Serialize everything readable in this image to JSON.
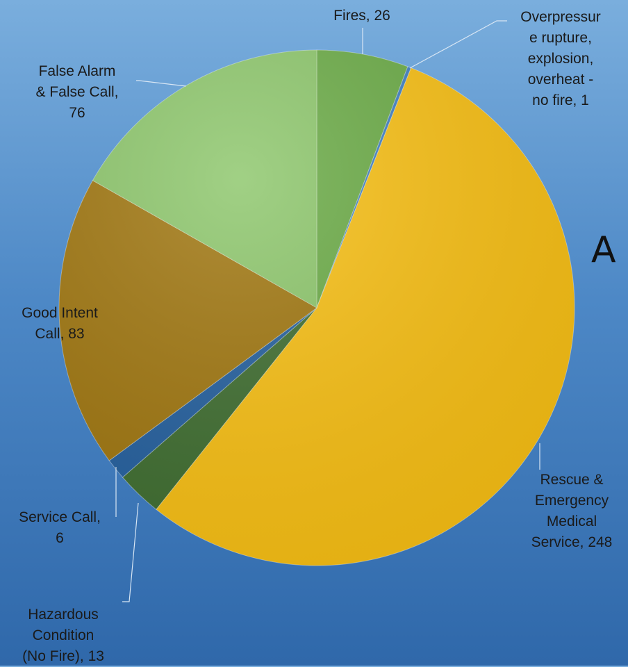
{
  "chart_data": {
    "type": "pie",
    "slices": [
      {
        "label": "Fires, 26",
        "name": "Fires",
        "value": 26,
        "color": "#6aab45"
      },
      {
        "label": "Overpressur\ne rupture,\nexplosion,\noverheat -\nno fire, 1",
        "name": "Overpressure rupture, explosion, overheat - no fire",
        "value": 1,
        "color": "#3f7fc2"
      },
      {
        "label": "Rescue &\nEmergency\nMedical\nService, 248",
        "name": "Rescue & Emergency Medical Service",
        "value": 248,
        "color": "#f8bf12"
      },
      {
        "label": "Hazardous\nCondition\n(No Fire), 13",
        "name": "Hazardous Condition (No Fire)",
        "value": 13,
        "color": "#3e6d2f"
      },
      {
        "label": "Service Call,\n6",
        "name": "Service Call",
        "value": 6,
        "color": "#235f9e"
      },
      {
        "label": "Good Intent\nCall, 83",
        "name": "Good Intent Call",
        "value": 83,
        "color": "#a0760e"
      },
      {
        "label": "False Alarm\n& False Call,\n76",
        "name": "False Alarm & False Call",
        "value": 76,
        "color": "#8cc66a"
      }
    ]
  },
  "stray_text": "A"
}
